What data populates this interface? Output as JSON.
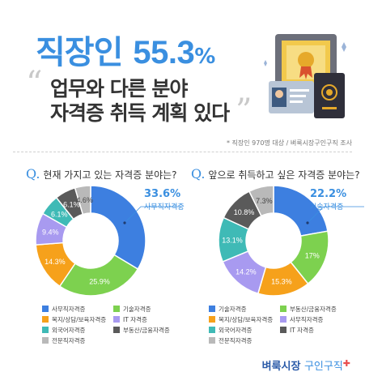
{
  "header": {
    "headline_prefix": "직장인",
    "headline_value": "55.3",
    "headline_unit": "%",
    "subtitle_line1": "업무와 다른 분야",
    "subtitle_line2": "자격증 취득 계획 있다",
    "note": "* 직장인 970명 대상 / 벼룩시장구인구직 조사"
  },
  "questions": {
    "left": "현재 가지고 있는 자격증 분야는?",
    "right": "앞으로 취득하고 싶은 자격증 분야는?"
  },
  "brand": {
    "part1": "벼룩시장",
    "part2": "구인구직"
  },
  "colors": {
    "blue": "#3d7fe0",
    "green": "#7dd14f",
    "orange": "#f6a11b",
    "purple": "#a89af0",
    "teal": "#3fbab6",
    "dark": "#5a5a5a",
    "gray": "#b9b9b9"
  },
  "chart_data": [
    {
      "type": "pie",
      "title": "현재 가지고 있는 자격증 분야는?",
      "slices": [
        {
          "label": "사무직자격증",
          "value": 33.6,
          "color": "#3d7fe0",
          "text": "33.6%"
        },
        {
          "label": "기술자격증",
          "value": 25.9,
          "color": "#7dd14f",
          "text": "25.9%"
        },
        {
          "label": "복지/상담/보육자격증",
          "value": 14.3,
          "color": "#f6a11b",
          "text": "14.3%"
        },
        {
          "label": "IT 자격증",
          "value": 9.4,
          "color": "#a89af0",
          "text": "9.4%"
        },
        {
          "label": "외국어자격증",
          "value": 6.1,
          "color": "#3fbab6",
          "text": "6.1%"
        },
        {
          "label": "부동산/금융자격증",
          "value": 6.1,
          "color": "#5a5a5a",
          "text": "6.1%"
        },
        {
          "label": "전문직자격증",
          "value": 4.6,
          "color": "#b9b9b9",
          "text": "4.6%"
        }
      ],
      "callout": {
        "value": "33.6%",
        "label": "사무직자격증"
      }
    },
    {
      "type": "pie",
      "title": "앞으로 취득하고 싶은 자격증 분야는?",
      "slices": [
        {
          "label": "기술자격증",
          "value": 22.2,
          "color": "#3d7fe0",
          "text": "22.2%"
        },
        {
          "label": "부동산/금융자격증",
          "value": 17,
          "color": "#7dd14f",
          "text": "17%"
        },
        {
          "label": "복지/상담/보육자격증",
          "value": 15.3,
          "color": "#f6a11b",
          "text": "15.3%"
        },
        {
          "label": "사무직자격증",
          "value": 14.2,
          "color": "#a89af0",
          "text": "14.2%"
        },
        {
          "label": "외국어자격증",
          "value": 13.1,
          "color": "#3fbab6",
          "text": "13.1%"
        },
        {
          "label": "IT 자격증",
          "value": 10.8,
          "color": "#5a5a5a",
          "text": "10.8%"
        },
        {
          "label": "전문직자격증",
          "value": 7.3,
          "color": "#b9b9b9",
          "text": "7.3%"
        }
      ],
      "callout": {
        "value": "22.2%",
        "label": "기술자격증"
      }
    }
  ]
}
